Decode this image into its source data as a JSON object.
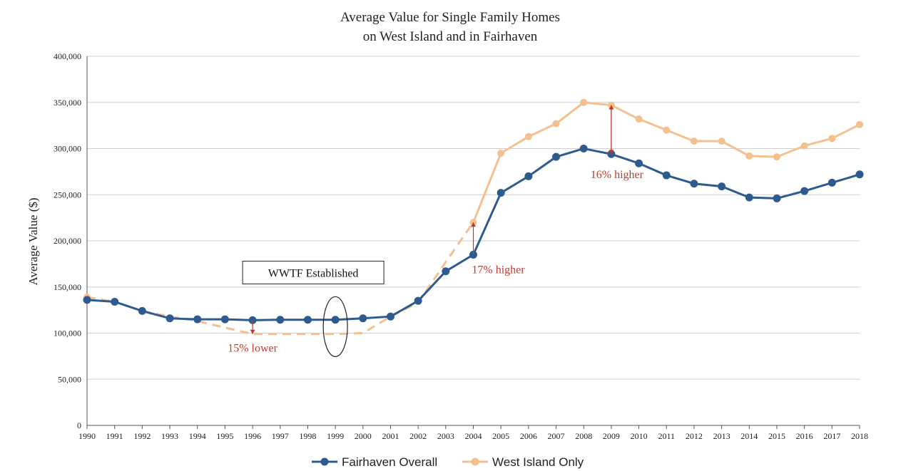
{
  "chart_data": {
    "type": "line",
    "title": [
      "Average Value for Single Family Homes",
      "on West Island and in Fairhaven"
    ],
    "ylabel": "Average Value ($)",
    "xlabel": "",
    "ylim": [
      0,
      400000
    ],
    "yticks": [
      0,
      50000,
      100000,
      150000,
      200000,
      250000,
      300000,
      350000,
      400000
    ],
    "ytick_labels": [
      "0",
      "50,000",
      "100,000",
      "150,000",
      "200,000",
      "250,000",
      "300,000",
      "350,000",
      "400,000"
    ],
    "x": [
      "1990",
      "1991",
      "1992",
      "1993",
      "1994",
      "1995",
      "1996",
      "1997",
      "1998",
      "1999",
      "2000",
      "2001",
      "2002",
      "2003",
      "2004",
      "2005",
      "2006",
      "2007",
      "2008",
      "2009",
      "2010",
      "2011",
      "2012",
      "2013",
      "2014",
      "2015",
      "2016",
      "2017",
      "2018"
    ],
    "grid": true,
    "legend_position": "bottom",
    "series": [
      {
        "name": "Fairhaven Overall",
        "color": "#2e5b8f",
        "values": [
          136000,
          134000,
          124000,
          116000,
          115000,
          115000,
          114000,
          114500,
          114500,
          114500,
          116000,
          118000,
          135000,
          167000,
          185000,
          252000,
          270000,
          291000,
          300000,
          294000,
          284000,
          271000,
          262000,
          259000,
          247000,
          246000,
          254000,
          263000,
          272000
        ]
      },
      {
        "name": "West Island Only",
        "color": "#f4c08f",
        "values": [
          139000,
          134000,
          124000,
          118000,
          113000,
          106000,
          99000,
          99000,
          99000,
          99000,
          100000,
          118000,
          133000,
          177000,
          220000,
          295000,
          313000,
          327000,
          350000,
          347000,
          332000,
          320000,
          308000,
          308000,
          292000,
          291000,
          303000,
          311000,
          326000
        ]
      }
    ],
    "annotations": [
      {
        "text": "15% lower",
        "year": "1996",
        "value": 83000
      },
      {
        "text": "17% higher",
        "year": "2004",
        "value": 168000
      },
      {
        "text": "16% higher",
        "year": "2009",
        "value": 271000
      },
      {
        "text": "WWTF Established",
        "year": "1999",
        "value": 168000
      }
    ]
  }
}
